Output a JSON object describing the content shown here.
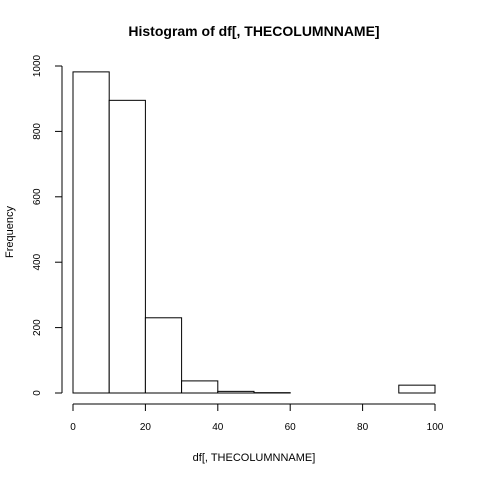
{
  "chart_data": {
    "type": "bar",
    "title": "Histogram of df[, THECOLUMNNAME]",
    "xlabel": "df[, THECOLUMNNAME]",
    "ylabel": "Frequency",
    "bins": [
      {
        "from": 0,
        "to": 10,
        "count": 982
      },
      {
        "from": 10,
        "to": 20,
        "count": 895
      },
      {
        "from": 20,
        "to": 30,
        "count": 230
      },
      {
        "from": 30,
        "to": 40,
        "count": 37
      },
      {
        "from": 40,
        "to": 50,
        "count": 5
      },
      {
        "from": 50,
        "to": 60,
        "count": 1
      },
      {
        "from": 60,
        "to": 70,
        "count": 0
      },
      {
        "from": 70,
        "to": 80,
        "count": 0
      },
      {
        "from": 80,
        "to": 90,
        "count": 0
      },
      {
        "from": 90,
        "to": 100,
        "count": 24
      }
    ],
    "xlim": [
      0,
      100
    ],
    "ylim": [
      0,
      1000
    ],
    "x_ticks": [
      0,
      20,
      40,
      60,
      80,
      100
    ],
    "y_ticks": [
      0,
      200,
      400,
      600,
      800,
      1000
    ],
    "grid": false,
    "bar_fill": "#ffffff",
    "bar_stroke": "#000000"
  }
}
